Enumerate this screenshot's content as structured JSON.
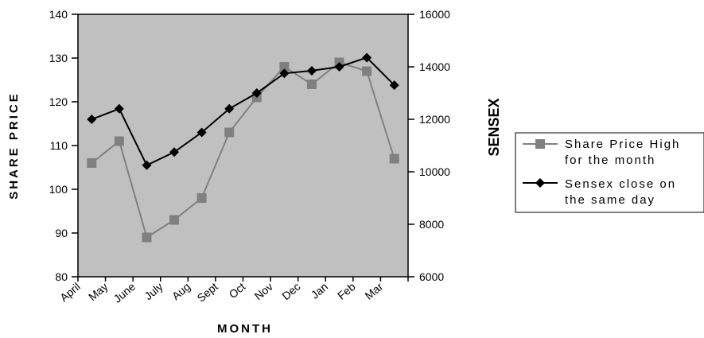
{
  "chart_data": {
    "type": "line",
    "categories": [
      "April",
      "May",
      "June",
      "July",
      "Aug",
      "Sept",
      "Oct",
      "Nov",
      "Dec",
      "Jan",
      "Feb",
      "Mar"
    ],
    "xlabel": "MONTH",
    "ylabel": "SHARE PRICE",
    "y2label": "SENSEX",
    "ylim": [
      80,
      140
    ],
    "y2lim": [
      6000,
      16000
    ],
    "yticks": [
      80,
      90,
      100,
      110,
      120,
      130,
      140
    ],
    "y2ticks": [
      6000,
      8000,
      10000,
      12000,
      14000,
      16000
    ],
    "grid": false,
    "legend_position": "right",
    "plot_background": "#c0c0c0",
    "series": [
      {
        "name_lines": [
          "Share Price High",
          "for the month"
        ],
        "axis": "left",
        "marker": "square",
        "color": "#808080",
        "values": [
          106,
          111,
          89,
          93,
          98,
          113,
          121,
          128,
          124,
          129,
          127,
          107
        ]
      },
      {
        "name_lines": [
          "Sensex close on",
          "the same day"
        ],
        "axis": "right",
        "marker": "diamond",
        "color": "#000000",
        "values": [
          12000,
          12400,
          10250,
          10750,
          11500,
          12400,
          13000,
          13750,
          13850,
          14000,
          14350,
          13300
        ]
      }
    ]
  }
}
